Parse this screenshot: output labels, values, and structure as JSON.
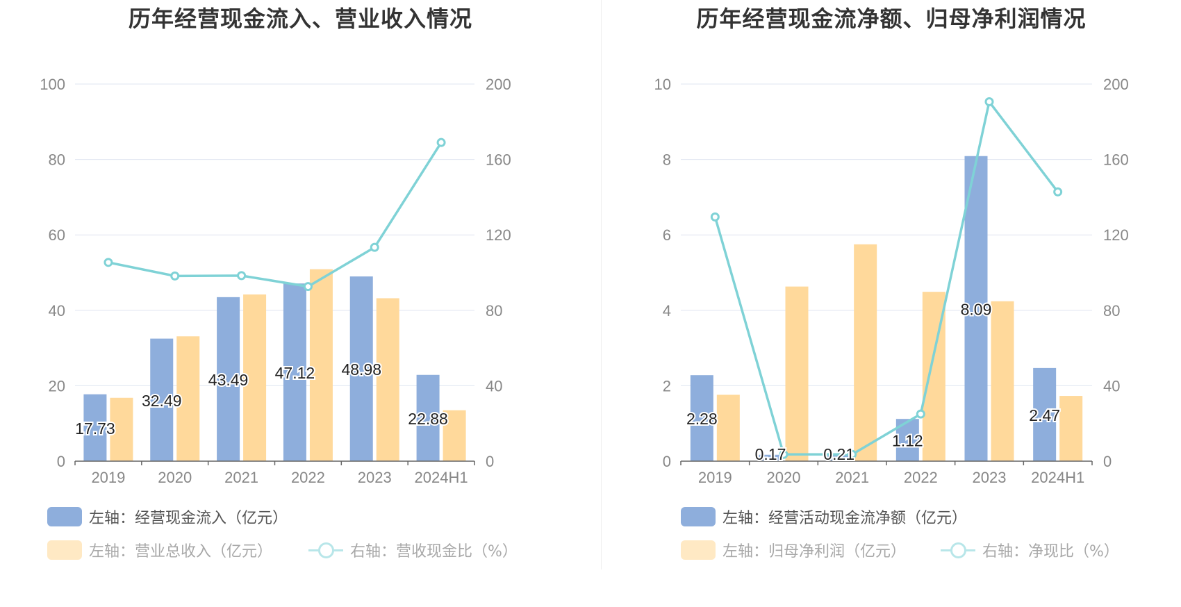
{
  "colors": {
    "bar_blue": "#8eaedc",
    "bar_orange": "#ffd99b",
    "line": "#7fd2d6",
    "grid": "#dfe4f0",
    "axis_text": "#888888"
  },
  "chart_data": [
    {
      "type": "bar",
      "title": "历年经营现金流入、营业收入情况",
      "categories": [
        "2019",
        "2020",
        "2021",
        "2022",
        "2023",
        "2024H1"
      ],
      "series": [
        {
          "name": "左轴：经营现金流入（亿元）",
          "axis": "left",
          "type": "bar",
          "values": [
            17.73,
            32.49,
            43.49,
            47.12,
            48.98,
            22.88
          ],
          "labels": [
            "17.73",
            "32.49",
            "43.49",
            "47.12",
            "48.98",
            "22.88"
          ]
        },
        {
          "name": "左轴：营业总收入（亿元）",
          "axis": "left",
          "type": "bar",
          "values": [
            16.8,
            33.1,
            44.2,
            50.9,
            43.2,
            13.5
          ],
          "legend_muted": true
        },
        {
          "name": "右轴：营收现金比（%）",
          "axis": "right",
          "type": "line",
          "values": [
            105.4,
            98.2,
            98.4,
            92.6,
            113.4,
            169.0
          ],
          "legend_muted": true
        }
      ],
      "ylim_left": [
        0,
        100
      ],
      "yticks_left": [
        "0",
        "20",
        "40",
        "60",
        "80",
        "100"
      ],
      "ylim_right": [
        0,
        200
      ],
      "yticks_right": [
        "0",
        "40",
        "80",
        "120",
        "160",
        "200"
      ],
      "grid": true,
      "legend_position": "bottom-left"
    },
    {
      "type": "bar",
      "title": "历年经营现金流净额、归母净利润情况",
      "categories": [
        "2019",
        "2020",
        "2021",
        "2022",
        "2023",
        "2024H1"
      ],
      "series": [
        {
          "name": "左轴：经营活动现金流净额（亿元）",
          "axis": "left",
          "type": "bar",
          "values": [
            2.28,
            0.17,
            0.21,
            1.12,
            8.09,
            2.47
          ],
          "labels": [
            "2.28",
            "0.17",
            "0.21",
            "1.12",
            "8.09",
            "2.47"
          ]
        },
        {
          "name": "左轴：归母净利润（亿元）",
          "axis": "left",
          "type": "bar",
          "values": [
            1.76,
            4.63,
            5.75,
            4.49,
            4.24,
            1.73
          ],
          "legend_muted": true
        },
        {
          "name": "右轴：净现比（%）",
          "axis": "right",
          "type": "line",
          "values": [
            129.5,
            3.6,
            3.6,
            25.0,
            190.6,
            142.8
          ],
          "legend_muted": true
        }
      ],
      "ylim_left": [
        0,
        10
      ],
      "yticks_left": [
        "0",
        "2",
        "4",
        "6",
        "8",
        "10"
      ],
      "ylim_right": [
        0,
        200
      ],
      "yticks_right": [
        "0",
        "40",
        "80",
        "120",
        "160",
        "200"
      ],
      "grid": true,
      "legend_position": "bottom-left"
    }
  ]
}
